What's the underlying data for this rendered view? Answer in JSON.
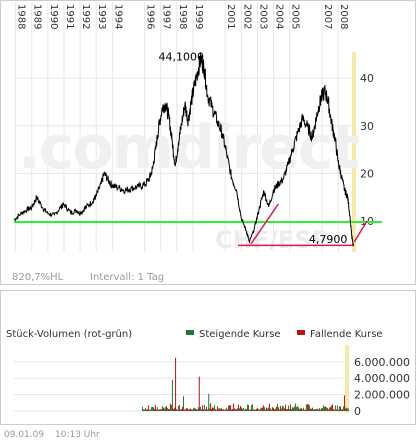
{
  "watermark": ".comdirect",
  "watermark_symbol": "CHF/ESP",
  "chart_data": [
    {
      "type": "line",
      "series_name": "",
      "x_ticks": [
        "1988",
        "1989",
        "1990",
        "1991",
        "1992",
        "1993",
        "1994",
        "1996",
        "1997",
        "1998",
        "1999",
        "2001",
        "2002",
        "2003",
        "2004",
        "2005",
        "2007",
        "2008"
      ],
      "x_tick_years": [
        1988,
        1989,
        1990,
        1991,
        1992,
        1993,
        1994,
        1996,
        1997,
        1998,
        1999,
        2001,
        2002,
        2003,
        2004,
        2005,
        2007,
        2008
      ],
      "xlim": [
        1987.9,
        2009.05
      ],
      "y_ticks": [
        10,
        20,
        30,
        40
      ],
      "ylim": [
        3.5,
        48
      ],
      "points": [
        [
          1987.9,
          10.2
        ],
        [
          1988.3,
          11.5
        ],
        [
          1988.7,
          12.4
        ],
        [
          1989.0,
          12.8
        ],
        [
          1989.3,
          15.0
        ],
        [
          1989.7,
          12.7
        ],
        [
          1990.0,
          11.6
        ],
        [
          1990.4,
          11.2
        ],
        [
          1990.8,
          12.9
        ],
        [
          1991.0,
          13.5
        ],
        [
          1991.4,
          11.8
        ],
        [
          1991.8,
          12.2
        ],
        [
          1992.0,
          11.6
        ],
        [
          1992.4,
          13.0
        ],
        [
          1992.8,
          14.2
        ],
        [
          1993.0,
          15.3
        ],
        [
          1993.3,
          17.8
        ],
        [
          1993.5,
          20.0
        ],
        [
          1993.8,
          18.3
        ],
        [
          1994.0,
          17.4
        ],
        [
          1994.4,
          17.0
        ],
        [
          1994.8,
          16.4
        ],
        [
          1995.2,
          16.9
        ],
        [
          1995.6,
          17.2
        ],
        [
          1996.0,
          17.6
        ],
        [
          1996.3,
          19.0
        ],
        [
          1996.5,
          21.0
        ],
        [
          1996.7,
          25.5
        ],
        [
          1996.9,
          30.2
        ],
        [
          1997.1,
          33.8
        ],
        [
          1997.3,
          34.5
        ],
        [
          1997.5,
          32.0
        ],
        [
          1997.7,
          27.0
        ],
        [
          1997.9,
          21.5
        ],
        [
          1998.1,
          26.5
        ],
        [
          1998.3,
          30.5
        ],
        [
          1998.5,
          34.5
        ],
        [
          1998.7,
          31.0
        ],
        [
          1998.9,
          35.2
        ],
        [
          1999.1,
          38.5
        ],
        [
          1999.3,
          41.5
        ],
        [
          1999.5,
          44.1
        ],
        [
          1999.7,
          42.0
        ],
        [
          1999.9,
          36.5
        ],
        [
          2000.2,
          33.8
        ],
        [
          2000.5,
          31.0
        ],
        [
          2000.8,
          28.5
        ],
        [
          2001.1,
          24.0
        ],
        [
          2001.4,
          19.0
        ],
        [
          2001.7,
          16.5
        ],
        [
          2002.0,
          10.6
        ],
        [
          2002.3,
          8.0
        ],
        [
          2002.5,
          5.6
        ],
        [
          2002.8,
          8.3
        ],
        [
          2003.1,
          12.5
        ],
        [
          2003.4,
          16.3
        ],
        [
          2003.7,
          13.0
        ],
        [
          2004.0,
          16.5
        ],
        [
          2004.3,
          17.8
        ],
        [
          2004.6,
          18.8
        ],
        [
          2004.9,
          21.8
        ],
        [
          2005.2,
          25.2
        ],
        [
          2005.5,
          28.5
        ],
        [
          2005.8,
          31.5
        ],
        [
          2006.1,
          29.8
        ],
        [
          2006.4,
          27.5
        ],
        [
          2006.6,
          30.8
        ],
        [
          2006.8,
          34.0
        ],
        [
          2007.0,
          36.2
        ],
        [
          2007.2,
          37.2
        ],
        [
          2007.4,
          34.8
        ],
        [
          2007.6,
          30.5
        ],
        [
          2007.8,
          27.5
        ],
        [
          2008.0,
          22.5
        ],
        [
          2008.2,
          19.5
        ],
        [
          2008.4,
          16.5
        ],
        [
          2008.6,
          15.0
        ],
        [
          2008.75,
          10.5
        ],
        [
          2008.85,
          6.8
        ],
        [
          2008.95,
          4.79
        ]
      ],
      "max_label": "44,1000",
      "max_point": [
        1999.5,
        44.1
      ],
      "min_label": "4,7900",
      "min_point": [
        2008.95,
        4.79
      ],
      "support_line_value": 9.8,
      "trend_lines": [
        {
          "from": [
            2002.6,
            5.2
          ],
          "to": [
            2004.3,
            13.6
          ]
        },
        {
          "from": [
            2009.0,
            5.6
          ],
          "to": [
            2009.8,
            10.0
          ]
        }
      ],
      "min_line": {
        "from": [
          2001.8,
          4.9
        ],
        "to": [
          2009.0,
          4.9
        ]
      },
      "info_left": "820,7%HL",
      "info_right": "Intervall: 1 Tag"
    },
    {
      "type": "bar",
      "title": "Stück-Volumen (rot-grün)",
      "legend": [
        {
          "label": "Steigende Kurse",
          "color": "#1e7a2e"
        },
        {
          "label": "Fallende Kurse",
          "color": "#b81414"
        }
      ],
      "y_ticks": [
        "6.000.000",
        "4.000.000",
        "2.000.000",
        "0"
      ],
      "y_tick_values": [
        6000000,
        4000000,
        2000000,
        0
      ],
      "ylim": [
        0,
        7200000
      ],
      "xlim": [
        1987.9,
        2009.05
      ],
      "volume_start_year": 1996.0,
      "spikes": [
        {
          "year": 1997.9,
          "value": 3800000
        },
        {
          "year": 1998.1,
          "value": 6500000
        },
        {
          "year": 1998.6,
          "value": 1800000
        },
        {
          "year": 1999.6,
          "value": 4200000
        },
        {
          "year": 2000.2,
          "value": 2100000
        },
        {
          "year": 2008.8,
          "value": 1900000
        }
      ]
    }
  ],
  "footer": {
    "date": "09.01.09",
    "time": "10:13 Uhr"
  },
  "colors": {
    "price_line": "#000000",
    "support": "#33ee33",
    "trend": "#e0184a",
    "grid": "#e6e6e6",
    "axis_bar": "#f7e9a8",
    "up": "#1e7a2e",
    "down": "#b81414"
  }
}
